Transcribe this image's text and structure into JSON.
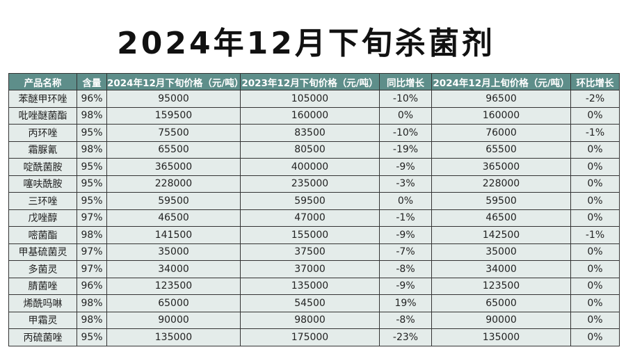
{
  "title": "2024年12月下旬杀菌剂",
  "table": {
    "header": [
      "产品名称",
      "含量",
      "2024年12月下旬价格（元/吨）",
      "2023年12月下旬价格（元/吨）",
      "同比增长",
      "2024年12月上旬价格（元/吨）",
      "环比增长"
    ],
    "rows": [
      [
        "苯醚甲环唑",
        "96%",
        "95000",
        "105000",
        "-10%",
        "96500",
        "-2%"
      ],
      [
        "吡唑醚菌酯",
        "98%",
        "159500",
        "160000",
        "0%",
        "160000",
        "0%"
      ],
      [
        "丙环唑",
        "95%",
        "75500",
        "83500",
        "-10%",
        "76000",
        "-1%"
      ],
      [
        "霜脲氰",
        "98%",
        "65500",
        "80500",
        "-19%",
        "65500",
        "0%"
      ],
      [
        "啶酰菌胺",
        "95%",
        "365000",
        "400000",
        "-9%",
        "365000",
        "0%"
      ],
      [
        "噻呋酰胺",
        "95%",
        "228000",
        "235000",
        "-3%",
        "228000",
        "0%"
      ],
      [
        "三环唑",
        "95%",
        "59500",
        "59500",
        "0%",
        "59500",
        "0%"
      ],
      [
        "戊唑醇",
        "97%",
        "46500",
        "47000",
        "-1%",
        "46500",
        "0%"
      ],
      [
        "嘧菌酯",
        "98%",
        "141500",
        "155000",
        "-9%",
        "142500",
        "-1%"
      ],
      [
        "甲基硫菌灵",
        "97%",
        "35000",
        "37500",
        "-7%",
        "35000",
        "0%"
      ],
      [
        "多菌灵",
        "97%",
        "34000",
        "37000",
        "-8%",
        "34000",
        "0%"
      ],
      [
        "腈菌唑",
        "96%",
        "123500",
        "135000",
        "-9%",
        "123500",
        "0%"
      ],
      [
        "烯酰吗啉",
        "98%",
        "65000",
        "54500",
        "19%",
        "65000",
        "0%"
      ],
      [
        "甲霜灵",
        "98%",
        "90000",
        "98000",
        "-8%",
        "90000",
        "0%"
      ],
      [
        "丙硫菌唑",
        "95%",
        "135000",
        "175000",
        "-23%",
        "135000",
        "0%"
      ]
    ]
  }
}
